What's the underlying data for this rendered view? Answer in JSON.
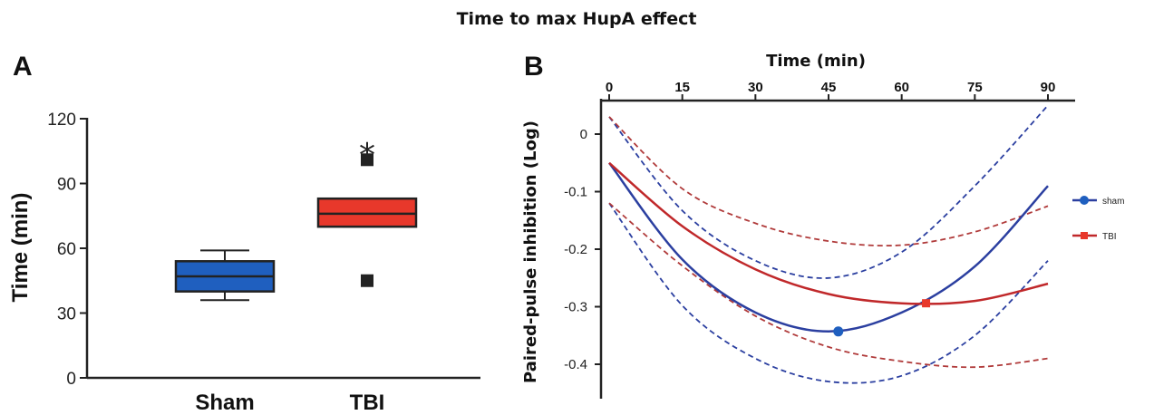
{
  "title": "Time to max HupA effect",
  "colors": {
    "sham": "#1f5fbf",
    "tbi": "#e8382b",
    "sham_line": "#2b3fa0",
    "tbi_line": "#c0282a",
    "tbi_ci": "#b03a3a"
  },
  "chart_data": [
    {
      "panel": "A",
      "type": "box",
      "ylabel": "Time (min)",
      "ylim": [
        0,
        120
      ],
      "yticks": [
        0,
        30,
        60,
        90,
        120
      ],
      "categories": [
        "Sham",
        "TBI"
      ],
      "boxes": [
        {
          "name": "Sham",
          "min": 36,
          "q1": 40,
          "median": 47,
          "q3": 54,
          "max": 59,
          "outliers": []
        },
        {
          "name": "TBI",
          "min": 70,
          "q1": 70,
          "median": 76,
          "q3": 83,
          "max": 83,
          "outliers": [
            101,
            45
          ]
        }
      ],
      "annotation": {
        "text": "*",
        "category": "TBI",
        "y": 110
      }
    },
    {
      "panel": "B",
      "type": "line",
      "xlabel": "Time (min)",
      "ylabel": "Paired-pulse inhibition (Log)",
      "xlim": [
        0,
        95
      ],
      "xticks": [
        0,
        15,
        30,
        45,
        60,
        75,
        90
      ],
      "ylim": [
        -0.46,
        0.07
      ],
      "yticks": [
        0,
        -0.1,
        -0.2,
        -0.3,
        -0.4
      ],
      "ytick_labels": [
        "0",
        "-0.1",
        "-0.2",
        "-0.3",
        "-0.4"
      ],
      "x": [
        0,
        15,
        30,
        45,
        60,
        75,
        90
      ],
      "series": [
        {
          "name": "sham",
          "values": [
            -0.05,
            -0.218,
            -0.31,
            -0.343,
            -0.31,
            -0.23,
            -0.09
          ],
          "upper": [
            0.03,
            -0.133,
            -0.22,
            -0.25,
            -0.205,
            -0.09,
            0.05
          ],
          "lower": [
            -0.12,
            -0.298,
            -0.39,
            -0.43,
            -0.42,
            -0.35,
            -0.22
          ],
          "peak": {
            "x": 47,
            "y": -0.343
          }
        },
        {
          "name": "TBI",
          "values": [
            -0.05,
            -0.16,
            -0.235,
            -0.278,
            -0.294,
            -0.29,
            -0.26
          ],
          "upper": [
            0.03,
            -0.095,
            -0.155,
            -0.186,
            -0.193,
            -0.17,
            -0.125
          ],
          "lower": [
            -0.12,
            -0.229,
            -0.316,
            -0.37,
            -0.395,
            -0.405,
            -0.39
          ],
          "peak": {
            "x": 65,
            "y": -0.294
          }
        }
      ],
      "legend": [
        {
          "label": "sham",
          "marker": "circle"
        },
        {
          "label": "TBI",
          "marker": "square"
        }
      ],
      "legend_position": "right"
    }
  ]
}
